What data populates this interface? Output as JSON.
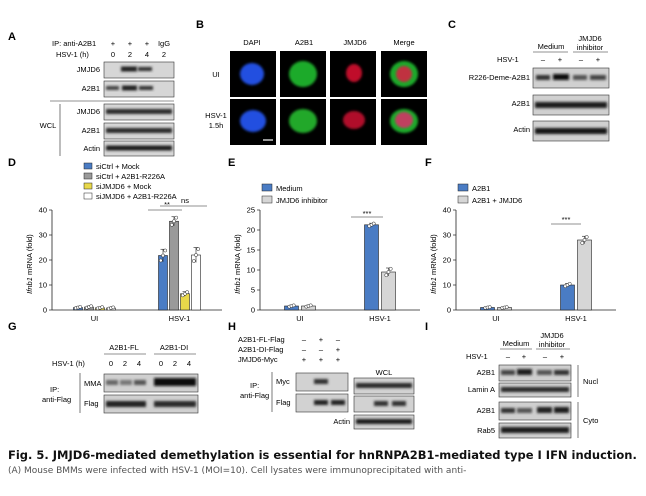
{
  "figure": {
    "caption_title": "Fig. 5. JMJD6-mediated demethylation is essential for hnRNPA2B1-mediated type I IFN induction.",
    "caption_body": "(A) Mouse BMMs were infected with HSV-1 (MOI=10). Cell lysates were immunoprecipitated with anti-"
  },
  "panelA": {
    "letter": "A",
    "ip_label": "IP: anti-A2B1",
    "hsv_label": "HSV-1 (h)",
    "plus": [
      "+",
      "+",
      "+"
    ],
    "igg": "IgG",
    "times": [
      "0",
      "2",
      "4",
      "2"
    ],
    "blot1": "JMJD6",
    "blot2": "A2B1",
    "wcl": "WCL",
    "wcl1": "JMJD6",
    "wcl2": "A2B1",
    "wcl3": "Actin"
  },
  "panelB": {
    "letter": "B",
    "cols": [
      "DAPI",
      "A2B1",
      "JMJD6",
      "Merge"
    ],
    "row1": "UI",
    "row2a": "HSV-1",
    "row2b": "1.5h"
  },
  "panelC": {
    "letter": "C",
    "hsv": "HSV-1",
    "signs": [
      "–",
      "+",
      "–",
      "+"
    ],
    "medium": "Medium",
    "inh1": "JMJD6",
    "inh2": "inhibitor",
    "blot1": "R226-Deme-A2B1",
    "blot2": "A2B1",
    "blot3": "Actin"
  },
  "panelD": {
    "letter": "D",
    "ylabel_italic": "Ifnb1",
    "ylabel_rest": " mRNA (fold)",
    "sig1": "**",
    "sig2": "ns",
    "legend": [
      "siCtrl + Mock",
      "siCtrl + A2B1-R226A",
      "siJMJD6 + Mock",
      "siJMJD6 + A2B1-R226A"
    ]
  },
  "panelE": {
    "letter": "E",
    "ylabel_italic": "Ifnb1",
    "ylabel_rest": " mRNA (fold)",
    "sig": "***",
    "legend": [
      "Medium",
      "JMJD6 inhibitor"
    ]
  },
  "panelF": {
    "letter": "F",
    "ylabel_italic": "Ifnb1",
    "ylabel_rest": " mRNA (fold)",
    "sig": "***",
    "legend": [
      "A2B1",
      "A2B1 + JMJD6"
    ]
  },
  "panelG": {
    "letter": "G",
    "fl": "A2B1-FL",
    "di": "A2B1-DI",
    "hsv": "HSV-1 (h)",
    "times": [
      "0",
      "2",
      "4",
      "0",
      "2",
      "4"
    ],
    "ip1": "IP:",
    "ip2": "anti-Flag",
    "blot1": "MMA",
    "blot2": "Flag"
  },
  "panelH": {
    "letter": "H",
    "row1": "A2B1-FL-Flag",
    "row2": "A2B1-DI-Flag",
    "row3": "JMJD6-Myc",
    "signs1": [
      "–",
      "+",
      "–"
    ],
    "signs2": [
      "–",
      "–",
      "+"
    ],
    "signs3": [
      "+",
      "+",
      "+"
    ],
    "ip1": "IP:",
    "ip2": "anti-Flag",
    "blot1": "Myc",
    "blot2": "Flag",
    "wcl": "WCL",
    "actin": "Actin"
  },
  "panelI": {
    "letter": "I",
    "medium": "Medium",
    "inh1": "JMJD6",
    "inh2": "inhibitor",
    "hsv": "HSV-1",
    "signs": [
      "–",
      "+",
      "–",
      "+"
    ],
    "blot1": "A2B1",
    "blot2": "Lamin A",
    "blot3": "A2B1",
    "blot4": "Rab5",
    "nucl": "Nucl",
    "cyto": "Cyto"
  },
  "colors": {
    "blue": "#4a7cc4",
    "gray": "#9a9a9a",
    "yellow": "#e8d84a",
    "white": "#ffffff",
    "lightgray": "#d6d6d6",
    "blot_bg": "#d4d4d4",
    "band": "#1a1a1a"
  },
  "chart_data": [
    {
      "type": "bar",
      "panel": "D",
      "categories": [
        "UI",
        "HSV-1"
      ],
      "ylabel": "Ifnb1 mRNA (fold)",
      "ylim": [
        0,
        40
      ],
      "yticks": [
        0,
        10,
        20,
        30,
        40
      ],
      "series": [
        {
          "name": "siCtrl + Mock",
          "color": "#4a7cc4",
          "values": [
            1.0,
            21.8
          ]
        },
        {
          "name": "siCtrl + A2B1-R226A",
          "color": "#9a9a9a",
          "values": [
            1.2,
            35.5
          ]
        },
        {
          "name": "siJMJD6 + Mock",
          "color": "#e8d84a",
          "values": [
            0.9,
            6.5
          ]
        },
        {
          "name": "siJMJD6 + A2B1-R226A",
          "color": "#ffffff",
          "values": [
            0.8,
            22.0
          ]
        }
      ],
      "errors": [
        [
          0.3,
          2.5
        ],
        [
          0.4,
          1.8
        ],
        [
          0.3,
          0.8
        ],
        [
          0.3,
          3.0
        ]
      ]
    },
    {
      "type": "bar",
      "panel": "E",
      "categories": [
        "UI",
        "HSV-1"
      ],
      "ylabel": "Ifnb1 mRNA (fold)",
      "ylim": [
        0,
        25
      ],
      "yticks": [
        0,
        5,
        10,
        15,
        20,
        25
      ],
      "series": [
        {
          "name": "Medium",
          "color": "#4a7cc4",
          "values": [
            1.0,
            21.3
          ]
        },
        {
          "name": "JMJD6 inhibitor",
          "color": "#d6d6d6",
          "values": [
            1.0,
            9.5
          ]
        }
      ],
      "errors": [
        [
          0.2,
          0.4
        ],
        [
          0.2,
          1.0
        ]
      ]
    },
    {
      "type": "bar",
      "panel": "F",
      "categories": [
        "UI",
        "HSV-1"
      ],
      "ylabel": "Ifnb1 mRNA (fold)",
      "ylim": [
        0,
        40
      ],
      "yticks": [
        0,
        10,
        20,
        30,
        40
      ],
      "series": [
        {
          "name": "A2B1",
          "color": "#4a7cc4",
          "values": [
            1.0,
            10.0
          ]
        },
        {
          "name": "A2B1 + JMJD6",
          "color": "#d6d6d6",
          "values": [
            1.0,
            28.0
          ]
        }
      ],
      "errors": [
        [
          0.2,
          0.6
        ],
        [
          0.2,
          1.5
        ]
      ]
    }
  ]
}
